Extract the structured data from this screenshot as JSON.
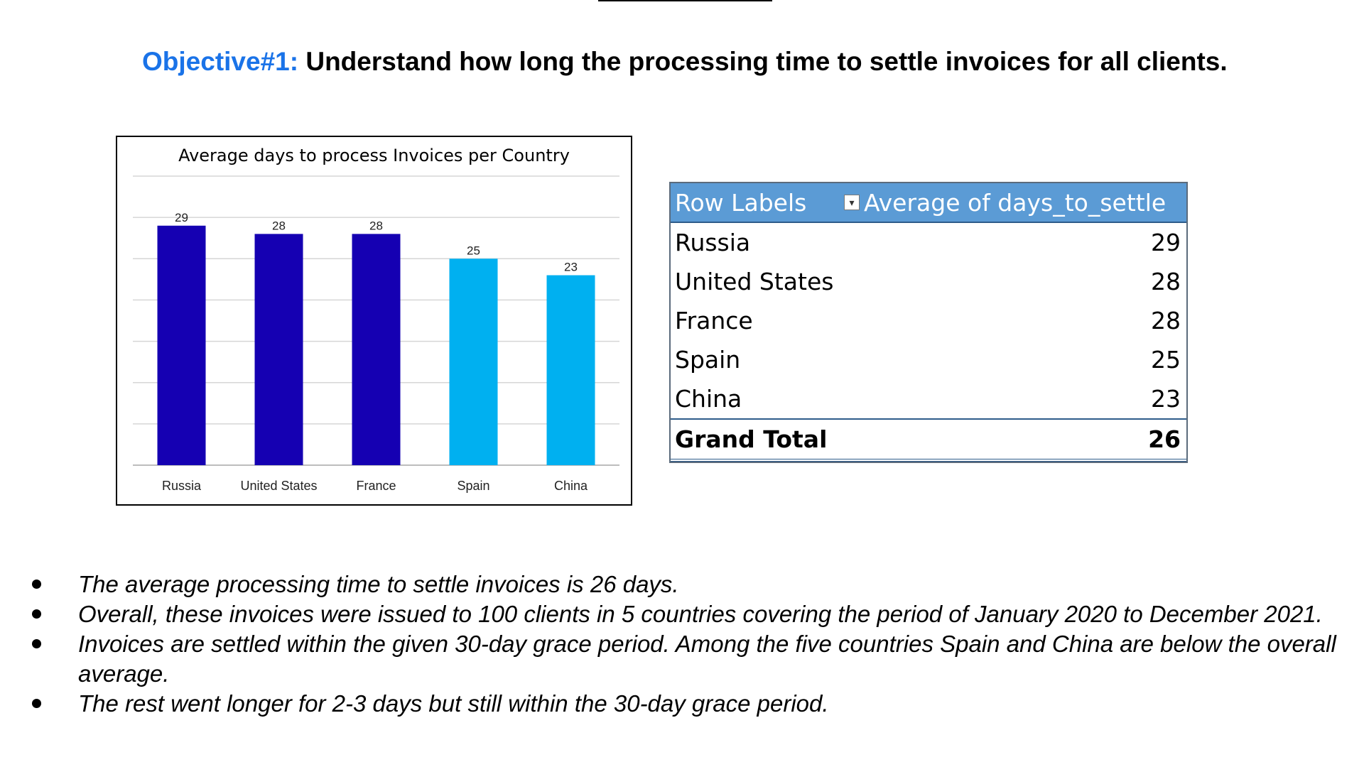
{
  "heading": {
    "prefix": "Objective#1:",
    "text": " Understand how long the processing time to settle invoices for all clients."
  },
  "colors": {
    "accent": "#1a73e8",
    "bar_above": "#1500b2",
    "bar_below": "#00b0f0",
    "pivot_header": "#5b9bd5"
  },
  "chart_data": {
    "type": "bar",
    "title": "Average days to process Invoices per Country",
    "categories": [
      "Russia",
      "United States",
      "France",
      "Spain",
      "China"
    ],
    "values": [
      29,
      28,
      28,
      25,
      23
    ],
    "bar_colors": [
      "#1500b2",
      "#1500b2",
      "#1500b2",
      "#00b0f0",
      "#00b0f0"
    ],
    "ylim": [
      0,
      35
    ],
    "grid": true,
    "xlabel": "",
    "ylabel": ""
  },
  "pivot": {
    "header_label": "Row Labels",
    "header_value": "Average of days_to_settle",
    "filter_icon": "filter-dropdown-icon",
    "rows": [
      {
        "label": "Russia",
        "value": "29"
      },
      {
        "label": "United States",
        "value": "28"
      },
      {
        "label": "France",
        "value": "28"
      },
      {
        "label": "Spain",
        "value": "25"
      },
      {
        "label": "China",
        "value": "23"
      }
    ],
    "total_label": "Grand Total",
    "total_value": "26"
  },
  "bullets": [
    "The average processing time to settle invoices is 26 days.",
    "Overall, these invoices were issued to 100 clients in 5 countries covering the period of January 2020 to December 2021.",
    "Invoices are settled within the given 30-day grace period. Among the five countries Spain and China are below the overall average.",
    "The rest went longer for 2-3 days but still within the 30-day grace period."
  ]
}
